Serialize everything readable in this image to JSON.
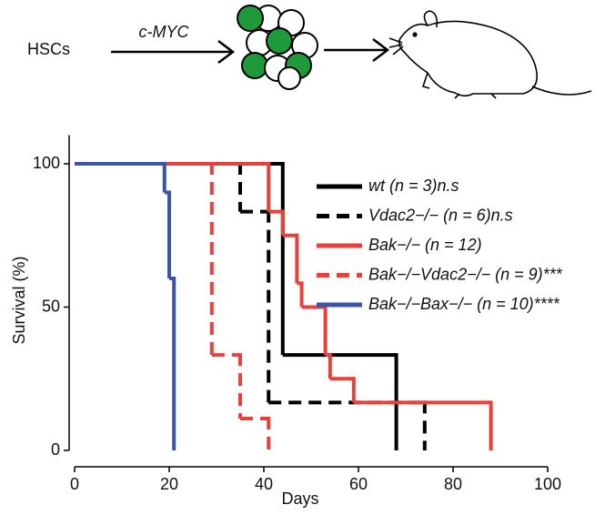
{
  "schematic": {
    "source_label": "HSCs",
    "arrow_label": "c-MYC"
  },
  "chart_data": {
    "type": "step",
    "x_label": "Days",
    "y_label": "Survival (%)",
    "xlim": [
      0,
      100
    ],
    "xticks": [
      0,
      20,
      40,
      60,
      80,
      100
    ],
    "ylim": [
      0,
      110
    ],
    "yticks": [
      0,
      50,
      100
    ],
    "legend": "upper right",
    "series": [
      {
        "name": "wt (n = 3)n.s",
        "color": "#000000",
        "dash": false,
        "x": [
          0,
          44,
          68
        ],
        "values": [
          100,
          33.3,
          0
        ]
      },
      {
        "name": "Vdac2−/− (n = 6)n.s",
        "color": "#000000",
        "dash": true,
        "x": [
          0,
          35,
          41,
          74
        ],
        "values": [
          100,
          83.3,
          16.7,
          0
        ]
      },
      {
        "name": "Bak−/− (n = 12)",
        "color": "#e8403a",
        "dash": false,
        "x": [
          0,
          41,
          44,
          47,
          48,
          53,
          54,
          59,
          88
        ],
        "values": [
          100,
          83.3,
          75,
          58.3,
          50,
          33.3,
          25,
          16.7,
          0
        ]
      },
      {
        "name": "Bak−/−Vdac2−/− (n = 9)***",
        "color": "#e8403a",
        "dash": true,
        "x": [
          0,
          29,
          35,
          41
        ],
        "values": [
          100,
          33.3,
          11.1,
          0
        ]
      },
      {
        "name": "Bak−/−Bax−/− (n = 10)****",
        "color": "#3a55a8",
        "dash": false,
        "x": [
          0,
          19,
          20,
          21
        ],
        "values": [
          100,
          90,
          60,
          0
        ]
      }
    ]
  }
}
